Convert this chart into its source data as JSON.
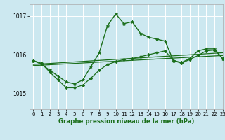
{
  "title": "Graphe pression niveau de la mer (hPa)",
  "xlim": [
    -0.5,
    23
  ],
  "ylim": [
    1014.6,
    1017.3
  ],
  "yticks": [
    1015,
    1016,
    1017
  ],
  "xticks": [
    0,
    1,
    2,
    3,
    4,
    5,
    6,
    7,
    8,
    9,
    10,
    11,
    12,
    13,
    14,
    15,
    16,
    17,
    18,
    19,
    20,
    21,
    22,
    23
  ],
  "bg_color": "#cce8f0",
  "grid_color": "#ffffff",
  "line_color": "#1a6e1a",
  "lines": [
    {
      "x": [
        0,
        1,
        2,
        3,
        4,
        5,
        6,
        7,
        8,
        9,
        10,
        11,
        12,
        13,
        14,
        15,
        16,
        17,
        18,
        19,
        20,
        21,
        22,
        23
      ],
      "y": [
        1015.85,
        1015.75,
        1015.6,
        1015.45,
        1015.3,
        1015.25,
        1015.35,
        1015.7,
        1016.05,
        1016.75,
        1017.05,
        1016.8,
        1016.85,
        1016.55,
        1016.45,
        1016.4,
        1016.35,
        1015.85,
        1015.8,
        1015.9,
        1016.1,
        1016.15,
        1016.15,
        1015.9
      ],
      "marker": "*",
      "markersize": 3.5,
      "linewidth": 1.0
    },
    {
      "x": [
        0,
        23
      ],
      "y": [
        1015.75,
        1016.05
      ],
      "marker": null,
      "markersize": 0,
      "linewidth": 0.9
    },
    {
      "x": [
        0,
        1,
        2,
        3,
        4,
        5,
        6,
        7,
        8,
        9,
        10,
        11,
        12,
        13,
        14,
        15,
        16,
        17,
        18,
        19,
        20,
        21,
        22,
        23
      ],
      "y": [
        1015.85,
        1015.78,
        1015.55,
        1015.35,
        1015.15,
        1015.15,
        1015.22,
        1015.4,
        1015.6,
        1015.75,
        1015.82,
        1015.88,
        1015.9,
        1015.95,
        1016.0,
        1016.05,
        1016.1,
        1015.85,
        1015.78,
        1015.88,
        1015.98,
        1016.1,
        1016.12,
        1015.9
      ],
      "marker": "D",
      "markersize": 2.2,
      "linewidth": 0.9
    },
    {
      "x": [
        0,
        23
      ],
      "y": [
        1015.72,
        1015.98
      ],
      "marker": null,
      "markersize": 0,
      "linewidth": 0.9
    }
  ]
}
